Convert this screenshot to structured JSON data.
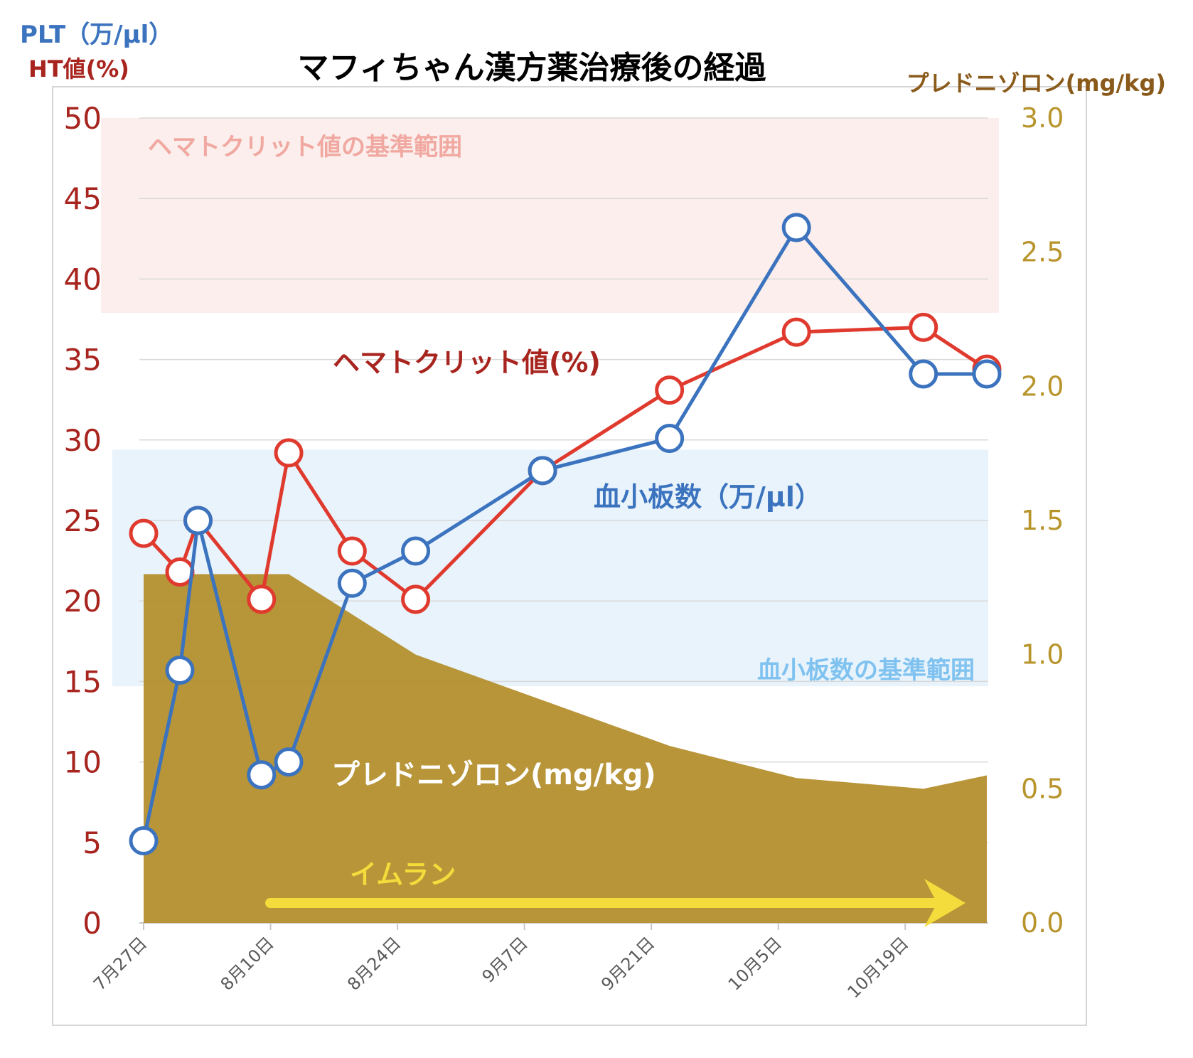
{
  "chart_data": {
    "type": "line",
    "title": "マフィちゃん漢方薬治療後の経過",
    "left_axis_label_plt": "PLT（万/μl）",
    "left_axis_label_ht": "HT値(%)",
    "right_axis_label": "プレドニゾロン(mg/kg)",
    "y_left_ticks": [
      "0",
      "5",
      "10",
      "15",
      "20",
      "25",
      "30",
      "35",
      "40",
      "45",
      "50"
    ],
    "y_right_ticks": [
      "0.0",
      "0.5",
      "1.0",
      "1.5",
      "2.0",
      "2.5",
      "3.0"
    ],
    "ylim_left": [
      0,
      50
    ],
    "ylim_right": [
      0,
      3
    ],
    "x_tick_labels": [
      "7月27日",
      "8月10日",
      "8月24日",
      "9月7日",
      "9月21日",
      "10月5日",
      "10月19日"
    ],
    "x_tick_days": [
      0,
      14,
      28,
      42,
      56,
      70,
      84
    ],
    "grid": true,
    "series": [
      {
        "name": "ヘマトクリット値(%)",
        "axis": "left",
        "color": "#e03a2e",
        "x": [
          0,
          4,
          6,
          13,
          16,
          23,
          30,
          44,
          58,
          72,
          86,
          93
        ],
        "values": [
          24.2,
          21.8,
          25.0,
          20.1,
          29.2,
          23.1,
          20.1,
          28.1,
          33.1,
          36.7,
          37.0,
          34.4
        ]
      },
      {
        "name": "血小板数（万/μl）",
        "axis": "left",
        "color": "#3b73be",
        "x": [
          0,
          4,
          6,
          13,
          16,
          23,
          30,
          44,
          58,
          72,
          86,
          93
        ],
        "values": [
          5.1,
          15.7,
          25.0,
          9.2,
          10.0,
          21.1,
          23.1,
          28.1,
          30.1,
          43.2,
          34.1,
          34.1
        ]
      },
      {
        "name": "プレドニゾロン(mg/kg)",
        "axis": "right",
        "type": "area",
        "color": "#b48f2e",
        "x": [
          0,
          16,
          30,
          58,
          72,
          86,
          93
        ],
        "values": [
          1.3,
          1.3,
          1.0,
          0.66,
          0.54,
          0.5,
          0.55
        ]
      }
    ],
    "reference_bands": [
      {
        "label": "ヘマトクリット値の基準範囲",
        "axis": "left",
        "min": 37.9,
        "max": 50,
        "color": "#fbeeec"
      },
      {
        "label": "血小板数の基準範囲",
        "axis": "left",
        "min": 14.7,
        "max": 29.4,
        "color": "#e8f3fc"
      }
    ],
    "annotations": {
      "ht_series_label": "ヘマトクリット値(%)",
      "plt_series_label": "血小板数（万/μl）",
      "pred_series_label": "プレドニゾロン(mg/kg)",
      "imuran_label": "イムラン"
    },
    "colors": {
      "ht": "#e03a2e",
      "plt": "#3b73be",
      "pred": "#b48f2e",
      "left_axis_text": "#a8241e",
      "right_axis_text": "#b8952c",
      "right_label_text": "#8a5a1a",
      "imuran": "#f3dc3b"
    }
  }
}
